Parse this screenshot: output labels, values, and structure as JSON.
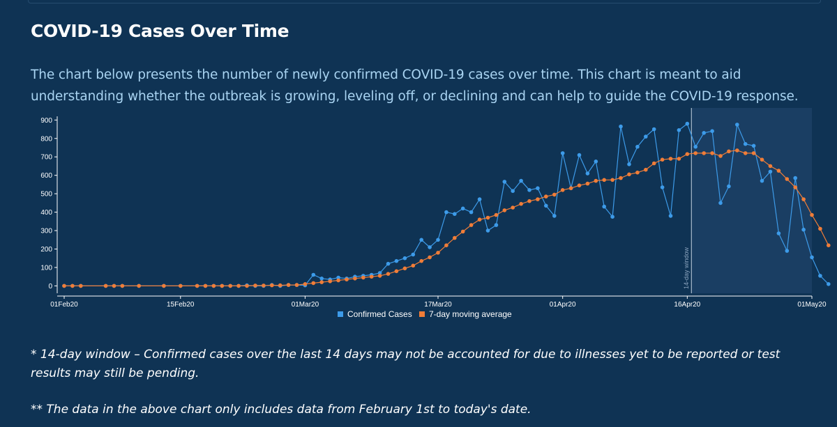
{
  "page": {
    "title": "COVID-19 Cases Over Time",
    "intro": "The chart below presents the number of newly confirmed COVID-19 cases over time. This chart is meant to aid understanding whether the outbreak is growing, leveling off, or declining and can help to guide the COVID-19 response.",
    "note1": "* 14-day window – Confirmed cases over the last 14 days may not be accounted for due to illnesses yet to be reported or test results may still be pending.",
    "note2": "** The data in the above chart only includes data from February 1st to today's date."
  },
  "colors": {
    "background": "#0f3354",
    "confirmed": "#3d9be9",
    "average": "#f07d38",
    "window_shade": "#1a3e63",
    "axis_text": "#ffffff",
    "intro_text": "#a9d4f2"
  },
  "chart_data": {
    "type": "line",
    "title": "COVID-19 Cases Over Time",
    "xlabel": "",
    "ylabel": "",
    "x_tick_labels": [
      "01Feb20",
      "15Feb20",
      "01Mar20",
      "17Mar20",
      "01Apr20",
      "16Apr20",
      "01May20"
    ],
    "y_tick_labels": [
      "0",
      "100",
      "200",
      "300",
      "400",
      "500",
      "600",
      "700",
      "800",
      "900"
    ],
    "xlim": [
      "2020-02-01",
      "2020-05-01"
    ],
    "ylim": [
      -40,
      920
    ],
    "grid": false,
    "legend": "bottom-center",
    "window_label": "14-day window",
    "window_start": "2020-04-17",
    "series": [
      {
        "name": "Confirmed Cases",
        "color": "#3d9be9",
        "points": [
          [
            "2020-02-01",
            0
          ],
          [
            "2020-02-02",
            0
          ],
          [
            "2020-02-03",
            0
          ],
          [
            "2020-02-06",
            0
          ],
          [
            "2020-02-07",
            0
          ],
          [
            "2020-02-08",
            0
          ],
          [
            "2020-02-10",
            0
          ],
          [
            "2020-02-13",
            0
          ],
          [
            "2020-02-15",
            0
          ],
          [
            "2020-02-17",
            0
          ],
          [
            "2020-02-18",
            0
          ],
          [
            "2020-02-19",
            0
          ],
          [
            "2020-02-20",
            0
          ],
          [
            "2020-02-21",
            0
          ],
          [
            "2020-02-22",
            0
          ],
          [
            "2020-02-23",
            3
          ],
          [
            "2020-02-24",
            0
          ],
          [
            "2020-02-25",
            0
          ],
          [
            "2020-02-26",
            5
          ],
          [
            "2020-02-27",
            0
          ],
          [
            "2020-02-28",
            5
          ],
          [
            "2020-02-29",
            5
          ],
          [
            "2020-03-01",
            3
          ],
          [
            "2020-03-02",
            60
          ],
          [
            "2020-03-03",
            40
          ],
          [
            "2020-03-04",
            35
          ],
          [
            "2020-03-05",
            45
          ],
          [
            "2020-03-06",
            40
          ],
          [
            "2020-03-07",
            50
          ],
          [
            "2020-03-08",
            55
          ],
          [
            "2020-03-09",
            60
          ],
          [
            "2020-03-10",
            70
          ],
          [
            "2020-03-11",
            120
          ],
          [
            "2020-03-12",
            135
          ],
          [
            "2020-03-13",
            150
          ],
          [
            "2020-03-14",
            170
          ],
          [
            "2020-03-15",
            250
          ],
          [
            "2020-03-16",
            210
          ],
          [
            "2020-03-17",
            250
          ],
          [
            "2020-03-18",
            400
          ],
          [
            "2020-03-19",
            390
          ],
          [
            "2020-03-20",
            420
          ],
          [
            "2020-03-21",
            400
          ],
          [
            "2020-03-22",
            470
          ],
          [
            "2020-03-23",
            300
          ],
          [
            "2020-03-24",
            330
          ],
          [
            "2020-03-25",
            565
          ],
          [
            "2020-03-26",
            515
          ],
          [
            "2020-03-27",
            570
          ],
          [
            "2020-03-28",
            520
          ],
          [
            "2020-03-29",
            530
          ],
          [
            "2020-03-30",
            435
          ],
          [
            "2020-03-31",
            380
          ],
          [
            "2020-04-01",
            720
          ],
          [
            "2020-04-02",
            530
          ],
          [
            "2020-04-03",
            710
          ],
          [
            "2020-04-04",
            610
          ],
          [
            "2020-04-05",
            675
          ],
          [
            "2020-04-06",
            430
          ],
          [
            "2020-04-07",
            375
          ],
          [
            "2020-04-08",
            865
          ],
          [
            "2020-04-09",
            660
          ],
          [
            "2020-04-10",
            755
          ],
          [
            "2020-04-11",
            810
          ],
          [
            "2020-04-12",
            850
          ],
          [
            "2020-04-13",
            535
          ],
          [
            "2020-04-14",
            380
          ],
          [
            "2020-04-15",
            845
          ],
          [
            "2020-04-16",
            880
          ],
          [
            "2020-04-17",
            755
          ],
          [
            "2020-04-18",
            830
          ],
          [
            "2020-04-19",
            840
          ],
          [
            "2020-04-20",
            450
          ],
          [
            "2020-04-21",
            540
          ],
          [
            "2020-04-22",
            875
          ],
          [
            "2020-04-23",
            770
          ],
          [
            "2020-04-24",
            760
          ],
          [
            "2020-04-25",
            570
          ],
          [
            "2020-04-26",
            620
          ],
          [
            "2020-04-27",
            285
          ],
          [
            "2020-04-28",
            190
          ],
          [
            "2020-04-29",
            585
          ],
          [
            "2020-04-30",
            305
          ],
          [
            "2020-05-01",
            155
          ],
          [
            "2020-05-02",
            55
          ],
          [
            "2020-05-03",
            10
          ]
        ]
      },
      {
        "name": "7-day moving average",
        "color": "#f07d38",
        "points": [
          [
            "2020-02-01",
            0
          ],
          [
            "2020-02-02",
            0
          ],
          [
            "2020-02-03",
            0
          ],
          [
            "2020-02-06",
            0
          ],
          [
            "2020-02-07",
            0
          ],
          [
            "2020-02-08",
            0
          ],
          [
            "2020-02-10",
            0
          ],
          [
            "2020-02-13",
            0
          ],
          [
            "2020-02-15",
            0
          ],
          [
            "2020-02-17",
            0
          ],
          [
            "2020-02-18",
            0
          ],
          [
            "2020-02-19",
            0
          ],
          [
            "2020-02-20",
            0
          ],
          [
            "2020-02-21",
            0
          ],
          [
            "2020-02-22",
            0
          ],
          [
            "2020-02-23",
            0
          ],
          [
            "2020-02-24",
            2
          ],
          [
            "2020-02-25",
            2
          ],
          [
            "2020-02-26",
            3
          ],
          [
            "2020-02-27",
            3
          ],
          [
            "2020-02-28",
            5
          ],
          [
            "2020-02-29",
            5
          ],
          [
            "2020-03-01",
            10
          ],
          [
            "2020-03-02",
            15
          ],
          [
            "2020-03-03",
            20
          ],
          [
            "2020-03-04",
            25
          ],
          [
            "2020-03-05",
            30
          ],
          [
            "2020-03-06",
            35
          ],
          [
            "2020-03-07",
            40
          ],
          [
            "2020-03-08",
            45
          ],
          [
            "2020-03-09",
            50
          ],
          [
            "2020-03-10",
            55
          ],
          [
            "2020-03-11",
            65
          ],
          [
            "2020-03-12",
            80
          ],
          [
            "2020-03-13",
            95
          ],
          [
            "2020-03-14",
            110
          ],
          [
            "2020-03-15",
            135
          ],
          [
            "2020-03-16",
            155
          ],
          [
            "2020-03-17",
            180
          ],
          [
            "2020-03-18",
            220
          ],
          [
            "2020-03-19",
            260
          ],
          [
            "2020-03-20",
            295
          ],
          [
            "2020-03-21",
            330
          ],
          [
            "2020-03-22",
            360
          ],
          [
            "2020-03-23",
            370
          ],
          [
            "2020-03-24",
            385
          ],
          [
            "2020-03-25",
            410
          ],
          [
            "2020-03-26",
            425
          ],
          [
            "2020-03-27",
            445
          ],
          [
            "2020-03-28",
            460
          ],
          [
            "2020-03-29",
            470
          ],
          [
            "2020-03-30",
            485
          ],
          [
            "2020-03-31",
            495
          ],
          [
            "2020-04-01",
            520
          ],
          [
            "2020-04-02",
            530
          ],
          [
            "2020-04-03",
            545
          ],
          [
            "2020-04-04",
            555
          ],
          [
            "2020-04-05",
            570
          ],
          [
            "2020-04-06",
            575
          ],
          [
            "2020-04-07",
            575
          ],
          [
            "2020-04-08",
            585
          ],
          [
            "2020-04-09",
            605
          ],
          [
            "2020-04-10",
            615
          ],
          [
            "2020-04-11",
            630
          ],
          [
            "2020-04-12",
            665
          ],
          [
            "2020-04-13",
            685
          ],
          [
            "2020-04-14",
            690
          ],
          [
            "2020-04-15",
            690
          ],
          [
            "2020-04-16",
            715
          ],
          [
            "2020-04-17",
            720
          ],
          [
            "2020-04-18",
            720
          ],
          [
            "2020-04-19",
            720
          ],
          [
            "2020-04-20",
            705
          ],
          [
            "2020-04-21",
            730
          ],
          [
            "2020-04-22",
            735
          ],
          [
            "2020-04-23",
            720
          ],
          [
            "2020-04-24",
            720
          ],
          [
            "2020-04-25",
            685
          ],
          [
            "2020-04-26",
            650
          ],
          [
            "2020-04-27",
            625
          ],
          [
            "2020-04-28",
            580
          ],
          [
            "2020-04-29",
            535
          ],
          [
            "2020-04-30",
            470
          ],
          [
            "2020-05-01",
            385
          ],
          [
            "2020-05-02",
            310
          ],
          [
            "2020-05-03",
            220
          ]
        ]
      }
    ]
  }
}
